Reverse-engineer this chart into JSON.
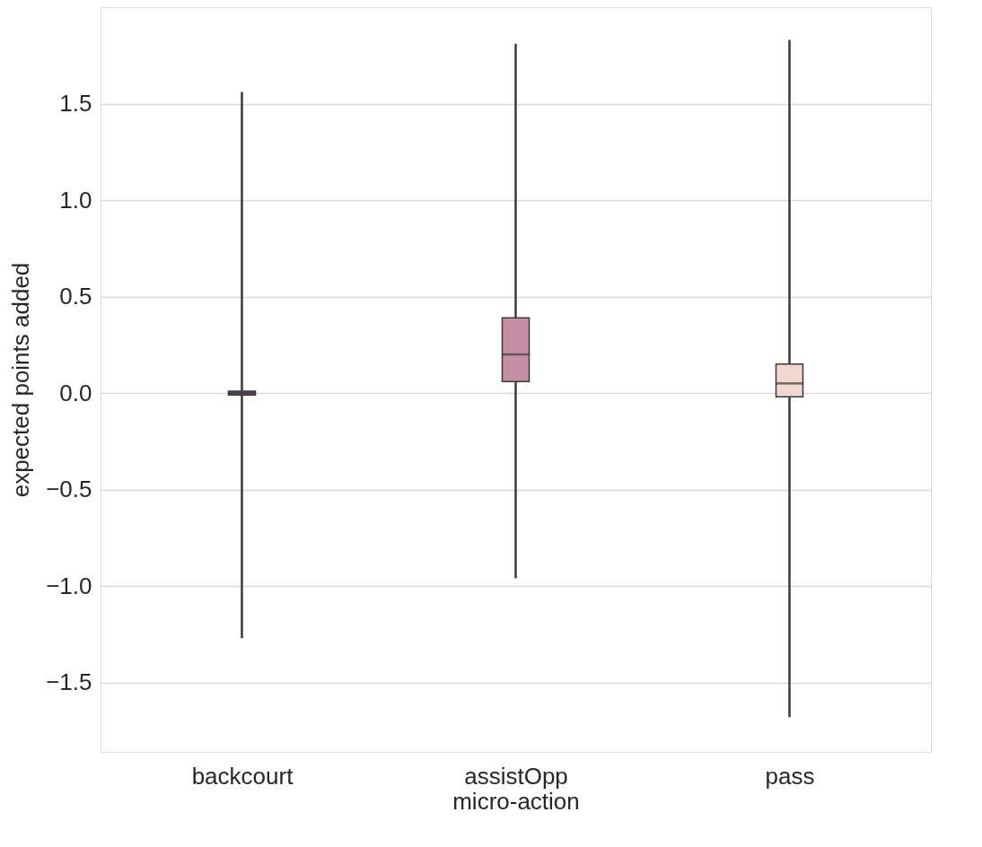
{
  "chart_data": {
    "type": "box",
    "xlabel": "micro-action",
    "ylabel": "expected points added",
    "categories": [
      "backcourt",
      "assistOpp",
      "pass"
    ],
    "boxes": [
      {
        "low": -1.27,
        "q1": -0.01,
        "median": 0.0,
        "q3": 0.01,
        "high": 1.56
      },
      {
        "low": -0.96,
        "q1": 0.06,
        "median": 0.2,
        "q3": 0.39,
        "high": 1.81
      },
      {
        "low": -1.68,
        "q1": -0.02,
        "median": 0.05,
        "q3": 0.15,
        "high": 1.83
      }
    ],
    "colors": [
      "#7e4a72",
      "#c58fa5",
      "#efd6d0"
    ],
    "ylim": [
      -1.86,
      2.0
    ],
    "yticks": [
      {
        "value": -1.5,
        "label": "−1.5"
      },
      {
        "value": -1.0,
        "label": "−1.0"
      },
      {
        "value": -0.5,
        "label": "−0.5"
      },
      {
        "value": 0.0,
        "label": "0.0"
      },
      {
        "value": 0.5,
        "label": "0.5"
      },
      {
        "value": 1.0,
        "label": "1.0"
      },
      {
        "value": 1.5,
        "label": "1.5"
      }
    ],
    "grid": "y"
  }
}
